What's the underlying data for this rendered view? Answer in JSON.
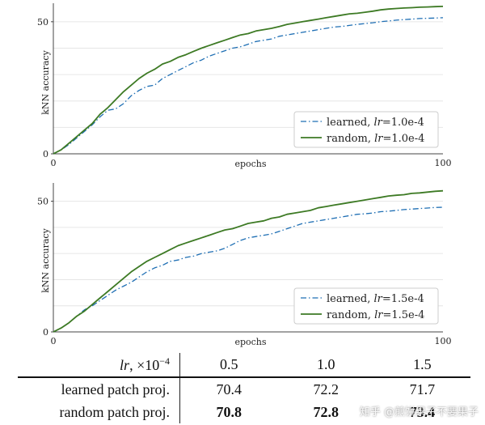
{
  "colors": {
    "learned": "#1f6fb4",
    "random": "#3d7a24"
  },
  "chart_data": [
    {
      "type": "line",
      "xlabel": "epochs",
      "ylabel": "kNN accuracy",
      "xlim": [
        0,
        100
      ],
      "ylim": [
        0,
        57
      ],
      "xticks": [
        0,
        100
      ],
      "yticks": [
        0,
        50
      ],
      "legend_position": "lower-right",
      "series": [
        {
          "name": "learned, lr=1.0e-4",
          "legend_plain": "learned, ",
          "legend_math": "lr",
          "legend_value": "=1.0e-4",
          "style": "dashdot",
          "x": [
            0,
            2,
            4,
            6,
            8,
            10,
            12,
            14,
            16,
            18,
            20,
            22,
            24,
            26,
            28,
            30,
            32,
            34,
            36,
            38,
            40,
            42,
            44,
            46,
            48,
            50,
            52,
            54,
            56,
            58,
            60,
            62,
            64,
            66,
            68,
            70,
            72,
            74,
            76,
            78,
            80,
            82,
            84,
            86,
            88,
            90,
            92,
            94,
            96,
            98,
            100
          ],
          "y": [
            0,
            1.5,
            3.5,
            6,
            8.5,
            11,
            14,
            16.5,
            17,
            19,
            22,
            24,
            25.5,
            26,
            28.5,
            30,
            31.5,
            33,
            34.5,
            35.5,
            37,
            38,
            39,
            40,
            40.5,
            41.5,
            42.5,
            43,
            43.5,
            44.5,
            45,
            45.5,
            46,
            46.5,
            47,
            47.5,
            48,
            48.2,
            48.6,
            49,
            49.3,
            49.6,
            50,
            50.3,
            50.6,
            50.8,
            51,
            51.2,
            51.3,
            51.4,
            51.5
          ]
        },
        {
          "name": "random, lr=1.0e-4",
          "legend_plain": "random, ",
          "legend_math": "lr",
          "legend_value": "=1.0e-4",
          "style": "solid",
          "x": [
            0,
            2,
            4,
            6,
            8,
            10,
            12,
            14,
            16,
            18,
            20,
            22,
            24,
            26,
            28,
            30,
            32,
            34,
            36,
            38,
            40,
            42,
            44,
            46,
            48,
            50,
            52,
            54,
            56,
            58,
            60,
            62,
            64,
            66,
            68,
            70,
            72,
            74,
            76,
            78,
            80,
            82,
            84,
            86,
            88,
            90,
            92,
            94,
            96,
            98,
            100
          ],
          "y": [
            0,
            1.5,
            4,
            6.5,
            9,
            11.5,
            15,
            17.5,
            20.5,
            23.5,
            26,
            28.5,
            30.5,
            32,
            34,
            35,
            36.5,
            37.5,
            38.8,
            40,
            41,
            42,
            43,
            44,
            45,
            45.5,
            46.5,
            47,
            47.5,
            48.2,
            49,
            49.5,
            50,
            50.5,
            51,
            51.5,
            52,
            52.5,
            53,
            53.2,
            53.6,
            54,
            54.5,
            54.8,
            55,
            55.2,
            55.3,
            55.5,
            55.6,
            55.7,
            55.8
          ]
        }
      ]
    },
    {
      "type": "line",
      "xlabel": "epochs",
      "ylabel": "kNN accuracy",
      "xlim": [
        0,
        100
      ],
      "ylim": [
        0,
        57
      ],
      "xticks": [
        0,
        100
      ],
      "yticks": [
        0,
        50
      ],
      "legend_position": "lower-right",
      "series": [
        {
          "name": "learned, lr=1.5e-4",
          "legend_plain": "learned, ",
          "legend_math": "lr",
          "legend_value": "=1.5e-4",
          "style": "dashdot",
          "x": [
            0,
            2,
            4,
            6,
            8,
            10,
            12,
            14,
            16,
            18,
            20,
            22,
            24,
            26,
            28,
            30,
            32,
            34,
            36,
            38,
            40,
            42,
            44,
            46,
            48,
            50,
            52,
            54,
            56,
            58,
            60,
            62,
            64,
            66,
            68,
            70,
            72,
            74,
            76,
            78,
            80,
            82,
            84,
            86,
            88,
            90,
            92,
            94,
            96,
            98,
            100
          ],
          "y": [
            0,
            1.5,
            3.5,
            6,
            8.5,
            10,
            12,
            14,
            16,
            17.5,
            19,
            21,
            23,
            24.5,
            25.5,
            27,
            27.5,
            28.5,
            29,
            30,
            30.5,
            31,
            32,
            33.5,
            35,
            36,
            36.5,
            37,
            37.5,
            38.5,
            39.5,
            40.5,
            41.5,
            42,
            42.5,
            43,
            43.5,
            44,
            44.5,
            45,
            45.2,
            45.5,
            46,
            46.2,
            46.5,
            46.8,
            47,
            47.2,
            47.4,
            47.6,
            47.7
          ]
        },
        {
          "name": "random, lr=1.5e-4",
          "legend_plain": "random, ",
          "legend_math": "lr",
          "legend_value": "=1.5e-4",
          "style": "solid",
          "x": [
            0,
            2,
            4,
            6,
            8,
            10,
            12,
            14,
            16,
            18,
            20,
            22,
            24,
            26,
            28,
            30,
            32,
            34,
            36,
            38,
            40,
            42,
            44,
            46,
            48,
            50,
            52,
            54,
            56,
            58,
            60,
            62,
            64,
            66,
            68,
            70,
            72,
            74,
            76,
            78,
            80,
            82,
            84,
            86,
            88,
            90,
            92,
            94,
            96,
            98,
            100
          ],
          "y": [
            0,
            1.5,
            3.5,
            6,
            8,
            10.5,
            13,
            15.5,
            18,
            20.5,
            23,
            25,
            27,
            28.5,
            30,
            31.5,
            33,
            34,
            35,
            36,
            37,
            38,
            39,
            39.5,
            40.5,
            41.5,
            42,
            42.5,
            43.5,
            44,
            45,
            45.5,
            46,
            46.5,
            47.5,
            48,
            48.5,
            49,
            49.5,
            50,
            50.5,
            51,
            51.5,
            52,
            52.3,
            52.5,
            53,
            53.2,
            53.5,
            53.8,
            54
          ]
        }
      ]
    }
  ],
  "table": {
    "header": {
      "lr": "lr",
      "sep": ", ×10",
      "exp": "−4",
      "cols": [
        "0.5",
        "1.0",
        "1.5"
      ]
    },
    "rows": [
      {
        "label": "learned patch proj.",
        "values": [
          "70.4",
          "72.2",
          "71.7"
        ]
      },
      {
        "label": "random patch proj.",
        "values": [
          "70.8",
          "72.8",
          "73.4"
        ]
      }
    ]
  },
  "watermark": "知乎 @煎饼果子不要果子"
}
